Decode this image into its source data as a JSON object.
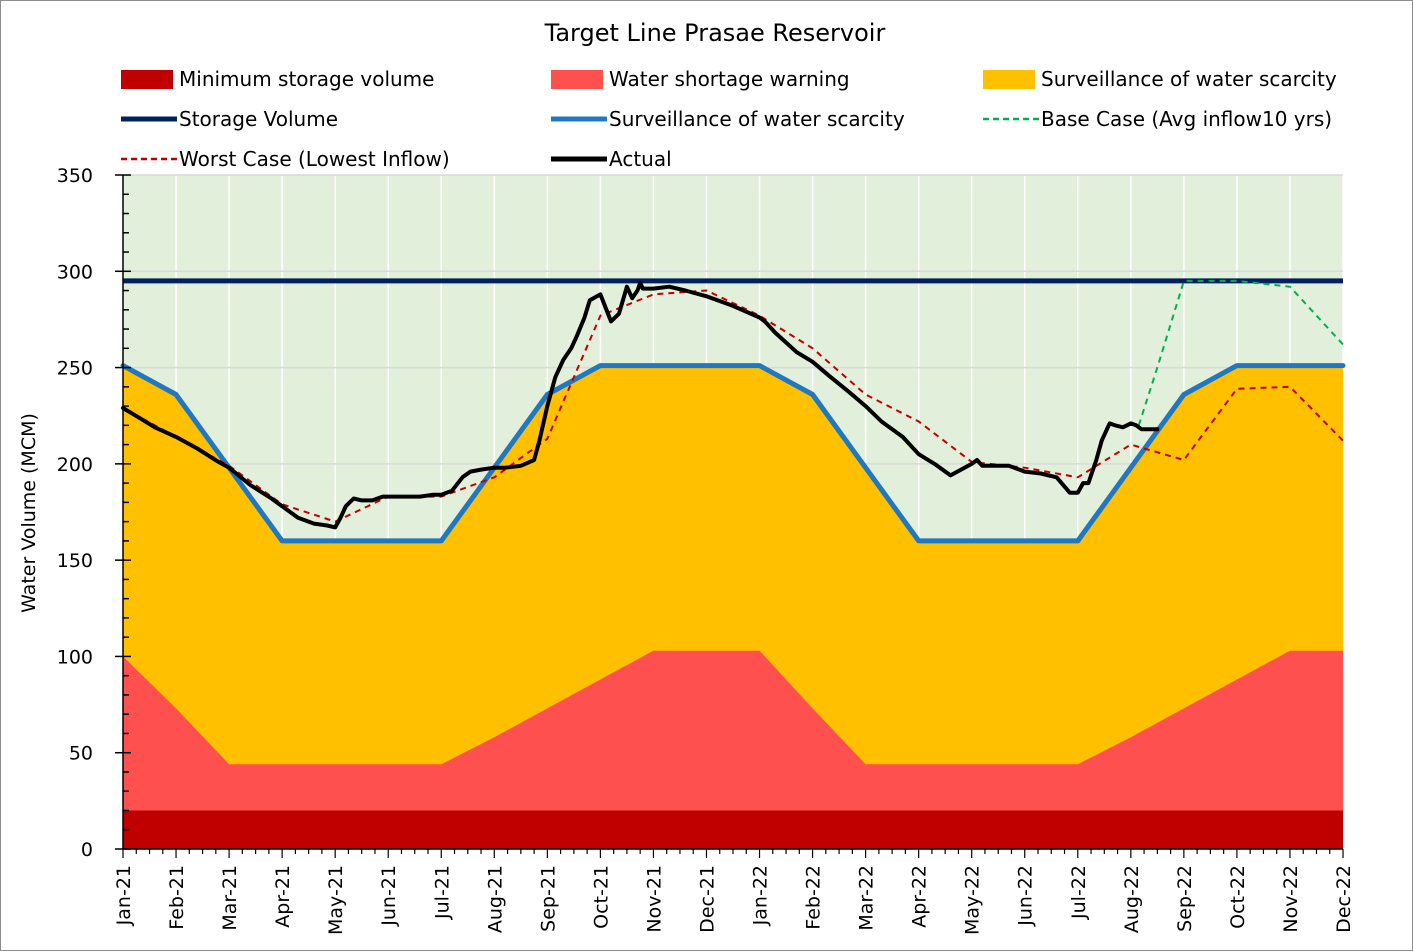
{
  "chart_data": {
    "type": "area",
    "title": "Target Line Prasae Reservoir",
    "ylabel": "Water Volume (MCM)",
    "xlabel": "",
    "ylim": [
      0,
      350
    ],
    "yticks": [
      0,
      50,
      100,
      150,
      200,
      250,
      300,
      350
    ],
    "grid": "horizontal",
    "categories": [
      "Jan-21",
      "Feb-21",
      "Mar-21",
      "Apr-21",
      "May-21",
      "Jun-21",
      "Jul-21",
      "Aug-21",
      "Sep-21",
      "Oct-21",
      "Nov-21",
      "Dec-21",
      "Jan-22",
      "Feb-22",
      "Mar-22",
      "Apr-22",
      "May-22",
      "Jun-22",
      "Jul-22",
      "Aug-22",
      "Sep-22",
      "Oct-22",
      "Nov-22",
      "Dec-22"
    ],
    "legend": [
      {
        "key": "min",
        "label": "Minimum storage volume",
        "kind": "box",
        "color": "#c00000"
      },
      {
        "key": "warn",
        "label": "Water shortage warning",
        "kind": "box",
        "color": "#ff5050"
      },
      {
        "key": "surv_area",
        "label": "Surveillance of water scarcity",
        "kind": "box",
        "color": "#ffc000"
      },
      {
        "key": "storage",
        "label": "Storage Volume",
        "kind": "line",
        "color": "#002060"
      },
      {
        "key": "surv_line",
        "label": "Surveillance of water scarcity",
        "kind": "line",
        "color": "#1f78c1"
      },
      {
        "key": "base",
        "label": "Base Case (Avg inflow10 yrs)",
        "kind": "dash",
        "color": "#00b050"
      },
      {
        "key": "worst",
        "label": "Worst Case (Lowest Inflow)",
        "kind": "dash",
        "color": "#c00000"
      },
      {
        "key": "actual",
        "label": "Actual",
        "kind": "line",
        "color": "#000000"
      }
    ],
    "series": [
      {
        "name": "Minimum storage volume",
        "kind": "area",
        "color": "#c00000",
        "x": [
          0,
          23
        ],
        "values": [
          20,
          20
        ]
      },
      {
        "name": "Water shortage warning",
        "kind": "area",
        "color": "#ff5050",
        "x": [
          0,
          1,
          2,
          3,
          4,
          5,
          6,
          7,
          8,
          9,
          10,
          11,
          12,
          13,
          14,
          15,
          16,
          17,
          18,
          19,
          20,
          21,
          22,
          23
        ],
        "values": [
          100,
          73,
          44,
          44,
          44,
          44,
          44,
          58,
          73,
          88,
          103,
          103,
          103,
          73,
          44,
          44,
          44,
          44,
          44,
          58,
          73,
          88,
          103,
          103
        ]
      },
      {
        "name": "Surveillance of water scarcity",
        "kind": "area",
        "color": "#ffc000",
        "x": [
          0,
          1,
          2,
          3,
          4,
          5,
          6,
          7,
          8,
          9,
          10,
          11,
          12,
          13,
          14,
          15,
          16,
          17,
          18,
          19,
          20,
          21,
          22,
          23
        ],
        "values": [
          251,
          236,
          198,
          160,
          160,
          160,
          160,
          198,
          236,
          251,
          251,
          251,
          251,
          236,
          198,
          160,
          160,
          160,
          160,
          198,
          236,
          251,
          251,
          251
        ]
      },
      {
        "name": "Storage Volume",
        "kind": "line",
        "color": "#002060",
        "x": [
          0,
          23
        ],
        "values": [
          295,
          295
        ]
      },
      {
        "name": "Surveillance of water scarcity",
        "kind": "line",
        "color": "#1f78c1",
        "x": [
          0,
          1,
          2,
          3,
          4,
          5,
          6,
          7,
          8,
          9,
          10,
          11,
          12,
          13,
          14,
          15,
          16,
          17,
          18,
          19,
          20,
          21,
          22,
          23
        ],
        "values": [
          251,
          236,
          198,
          160,
          160,
          160,
          160,
          198,
          236,
          251,
          251,
          251,
          251,
          236,
          198,
          160,
          160,
          160,
          160,
          198,
          236,
          251,
          251,
          251
        ]
      },
      {
        "name": "Base Case (Avg inflow10 yrs)",
        "kind": "dash",
        "color": "#00b050",
        "x": [
          19.15,
          19.5,
          20,
          21,
          22,
          23
        ],
        "values": [
          220,
          250,
          295,
          295,
          292,
          262
        ]
      },
      {
        "name": "Worst Case (Lowest Inflow)",
        "kind": "dash",
        "color": "#c00000",
        "x": [
          0,
          1,
          2,
          3,
          4,
          5,
          6,
          7,
          8,
          9,
          10,
          11,
          12,
          13,
          14,
          15,
          16,
          17,
          18,
          19,
          20,
          21,
          22,
          23
        ],
        "values": [
          229,
          214,
          199,
          179,
          170,
          183,
          183,
          193,
          213,
          277,
          288,
          290,
          277,
          260,
          236,
          222,
          201,
          198,
          193,
          210,
          202,
          239,
          240,
          212
        ]
      },
      {
        "name": "Actual",
        "kind": "line",
        "color": "#000000",
        "x": [
          0,
          0.3,
          0.6,
          1,
          1.4,
          1.8,
          2,
          2.4,
          2.8,
          3,
          3.3,
          3.6,
          3.85,
          4,
          4.1,
          4.2,
          4.35,
          4.5,
          4.7,
          4.9,
          5,
          5.3,
          5.6,
          5.85,
          6,
          6.2,
          6.4,
          6.55,
          6.75,
          7,
          7.2,
          7.5,
          7.75,
          7.85,
          8,
          8.15,
          8.3,
          8.45,
          8.55,
          8.7,
          8.8,
          9,
          9.1,
          9.2,
          9.35,
          9.5,
          9.6,
          9.7,
          9.75,
          9.8,
          10,
          10.3,
          10.6,
          11,
          11.5,
          12,
          12.1,
          12.3,
          12.7,
          13,
          13.3,
          13.7,
          14,
          14.3,
          14.7,
          15,
          15.3,
          15.6,
          15.8,
          16,
          16.1,
          16.2,
          16.4,
          16.7,
          17,
          17.3,
          17.6,
          17.85,
          18,
          18.1,
          18.2,
          18.35,
          18.45,
          18.6,
          18.7,
          18.85,
          19,
          19.1,
          19.2,
          19.35,
          19.45,
          19.5
        ],
        "values": [
          229,
          224,
          219,
          214,
          208,
          201,
          198,
          189,
          182,
          178,
          172,
          169,
          168,
          167,
          172,
          178,
          182,
          181,
          181,
          183,
          183,
          183,
          183,
          184,
          184,
          186,
          193,
          196,
          197,
          198,
          198,
          199,
          202,
          212,
          230,
          245,
          254,
          260,
          266,
          276,
          285,
          288,
          281,
          274,
          278,
          292,
          286,
          290,
          294,
          291,
          291,
          292,
          290,
          287,
          282,
          276,
          274,
          268,
          258,
          253,
          246,
          237,
          230,
          222,
          214,
          205,
          200,
          194,
          197,
          200,
          202,
          199,
          199,
          199,
          196,
          195,
          193,
          185,
          185,
          190,
          190,
          202,
          212,
          221,
          220,
          219,
          221,
          220,
          218,
          218,
          218,
          218
        ]
      }
    ]
  }
}
